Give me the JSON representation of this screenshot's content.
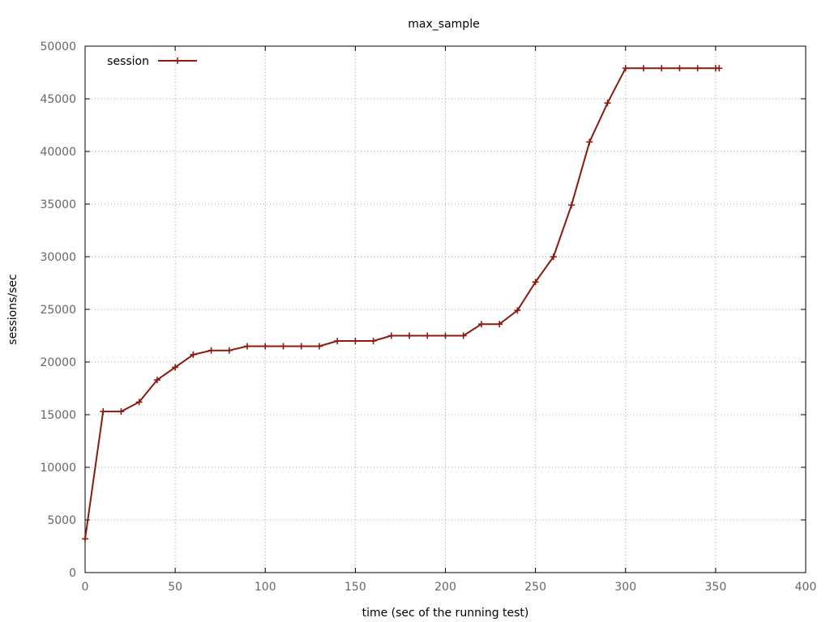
{
  "chart_data": {
    "type": "line",
    "title": "max_sample",
    "xlabel": "time (sec of the running test)",
    "ylabel": "sessions/sec",
    "xlim": [
      0,
      400
    ],
    "ylim": [
      0,
      50000
    ],
    "x_ticks": [
      0,
      50,
      100,
      150,
      200,
      250,
      300,
      350,
      400
    ],
    "y_ticks": [
      0,
      5000,
      10000,
      15000,
      20000,
      25000,
      30000,
      35000,
      40000,
      45000,
      50000
    ],
    "grid": true,
    "legend_position": "top-left",
    "series": [
      {
        "name": "session",
        "color": "#8b1a10",
        "marker": "plus",
        "x": [
          0,
          10,
          20,
          30,
          40,
          50,
          60,
          70,
          80,
          90,
          100,
          110,
          120,
          130,
          140,
          150,
          160,
          170,
          180,
          190,
          200,
          210,
          220,
          230,
          240,
          250,
          260,
          270,
          280,
          290,
          300,
          310,
          320,
          330,
          340,
          350,
          352
        ],
        "y": [
          3200,
          15300,
          15300,
          16200,
          18300,
          19500,
          20700,
          21100,
          21100,
          21500,
          21500,
          21500,
          21500,
          21500,
          22000,
          22000,
          22000,
          22500,
          22500,
          22500,
          22500,
          22500,
          23600,
          23600,
          24900,
          27600,
          30000,
          34900,
          40900,
          44600,
          47900,
          47900,
          47900,
          47900,
          47900,
          47900,
          47900
        ]
      }
    ]
  }
}
